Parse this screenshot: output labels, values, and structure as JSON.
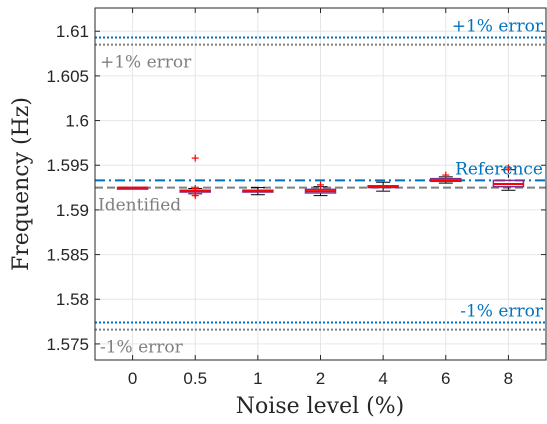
{
  "chart_data": {
    "type": "box",
    "xlabel": "Noise level (%)",
    "ylabel": "Frequency (Hz)",
    "categories": [
      "0",
      "0.5",
      "1",
      "2",
      "4",
      "6",
      "8"
    ],
    "ylim": [
      1.5732,
      1.6126
    ],
    "yticks": [
      1.575,
      1.58,
      1.585,
      1.59,
      1.595,
      1.6,
      1.605,
      1.61
    ],
    "yticklabels": [
      "1.575",
      "1.58",
      "1.585",
      "1.59",
      "1.595",
      "1.6",
      "1.605",
      "1.61"
    ],
    "grid": true,
    "boxes": [
      {
        "category": "0",
        "min": 1.5925,
        "q1": 1.5925,
        "median": 1.5925,
        "q3": 1.5925,
        "max": 1.5925,
        "outliers": []
      },
      {
        "category": "0.5",
        "min": 1.5918,
        "q1": 1.592,
        "median": 1.5921,
        "q3": 1.5922,
        "max": 1.5924,
        "outliers": [
          1.5958,
          1.5924,
          1.5916,
          1.5918
        ]
      },
      {
        "category": "1",
        "min": 1.5917,
        "q1": 1.592,
        "median": 1.5921,
        "q3": 1.5922,
        "max": 1.5925,
        "outliers": []
      },
      {
        "category": "2",
        "min": 1.5916,
        "q1": 1.5919,
        "median": 1.5921,
        "q3": 1.5923,
        "max": 1.5926,
        "outliers": [
          1.5928
        ]
      },
      {
        "category": "4",
        "min": 1.5921,
        "q1": 1.5925,
        "median": 1.5926,
        "q3": 1.5927,
        "max": 1.5931,
        "outliers": []
      },
      {
        "category": "6",
        "min": 1.593,
        "q1": 1.5932,
        "median": 1.5933,
        "q3": 1.5935,
        "max": 1.5937,
        "outliers": [
          1.5939
        ]
      },
      {
        "category": "8",
        "min": 1.5922,
        "q1": 1.5926,
        "median": 1.5929,
        "q3": 1.5933,
        "max": 1.5945,
        "outliers": [
          1.5947
        ]
      }
    ],
    "reference_lines": [
      {
        "label": "Reference",
        "value": 1.5933,
        "style": "dashdot",
        "color": "#0072BD"
      },
      {
        "label": "+1% error",
        "value": 1.6093,
        "style": "dotted",
        "color": "#0072BD"
      },
      {
        "label": "-1% error",
        "value": 1.5774,
        "style": "dotted",
        "color": "#0072BD"
      },
      {
        "label": "Identified",
        "value": 1.5925,
        "style": "dashed",
        "color": "#7f7f7f"
      },
      {
        "label": "+1% error",
        "value": 1.6085,
        "style": "dotted",
        "color": "#7f7f7f"
      },
      {
        "label": "-1% error",
        "value": 1.5766,
        "style": "dotted",
        "color": "#7f7f7f"
      }
    ],
    "colors": {
      "box": "#7E2F8E",
      "median": "#FF0000",
      "outlier": "#FF0000",
      "whisker": "#000000",
      "grid": "#e6e6e6"
    }
  }
}
